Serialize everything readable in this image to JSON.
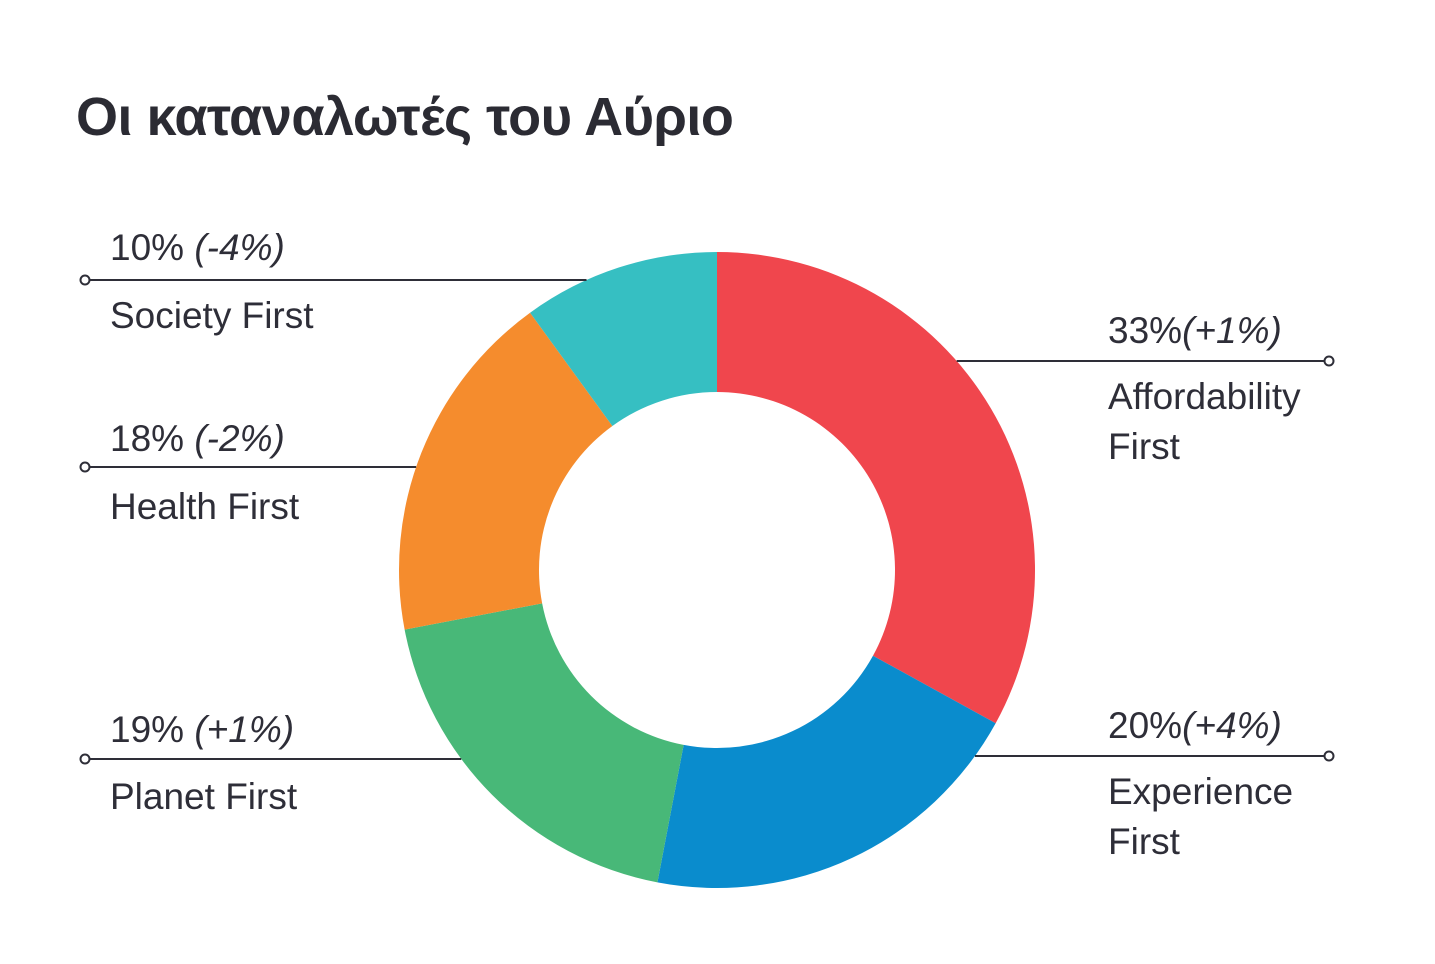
{
  "title": "Οι καταναλωτές του Αύριο",
  "styles": {
    "background": "#ffffff",
    "text_color": "#2e2e38",
    "line_color": "#2e2e38"
  },
  "chart_data": {
    "type": "pie",
    "subtype": "donut",
    "title": "Οι καταναλωτές του Αύριο",
    "total": 100,
    "start_angle_deg": 0,
    "direction": "clockwise",
    "donut_hole_ratio": 0.56,
    "legend_position": "callout-leader-lines",
    "segments": [
      {
        "id": "affordability",
        "label": "Affordability First",
        "value": 33,
        "pct_label": "33%",
        "change_label": "(+1%)",
        "color": "#F0464D",
        "label_side": "right"
      },
      {
        "id": "experience",
        "label": "Experience First",
        "value": 20,
        "pct_label": "20%",
        "change_label": "(+4%)",
        "color": "#0A8CCD",
        "label_side": "right"
      },
      {
        "id": "planet",
        "label": "Planet First",
        "value": 19,
        "pct_label": "19%",
        "change_label": " (+1%)",
        "color": "#48B878",
        "label_side": "left"
      },
      {
        "id": "health",
        "label": "Health First",
        "value": 18,
        "pct_label": "18%",
        "change_label": " (-2%)",
        "color": "#F58C2D",
        "label_side": "left"
      },
      {
        "id": "society",
        "label": "Society First",
        "value": 10,
        "pct_label": "10%",
        "change_label": " (-4%)",
        "color": "#36BFC2",
        "label_side": "left"
      }
    ]
  }
}
